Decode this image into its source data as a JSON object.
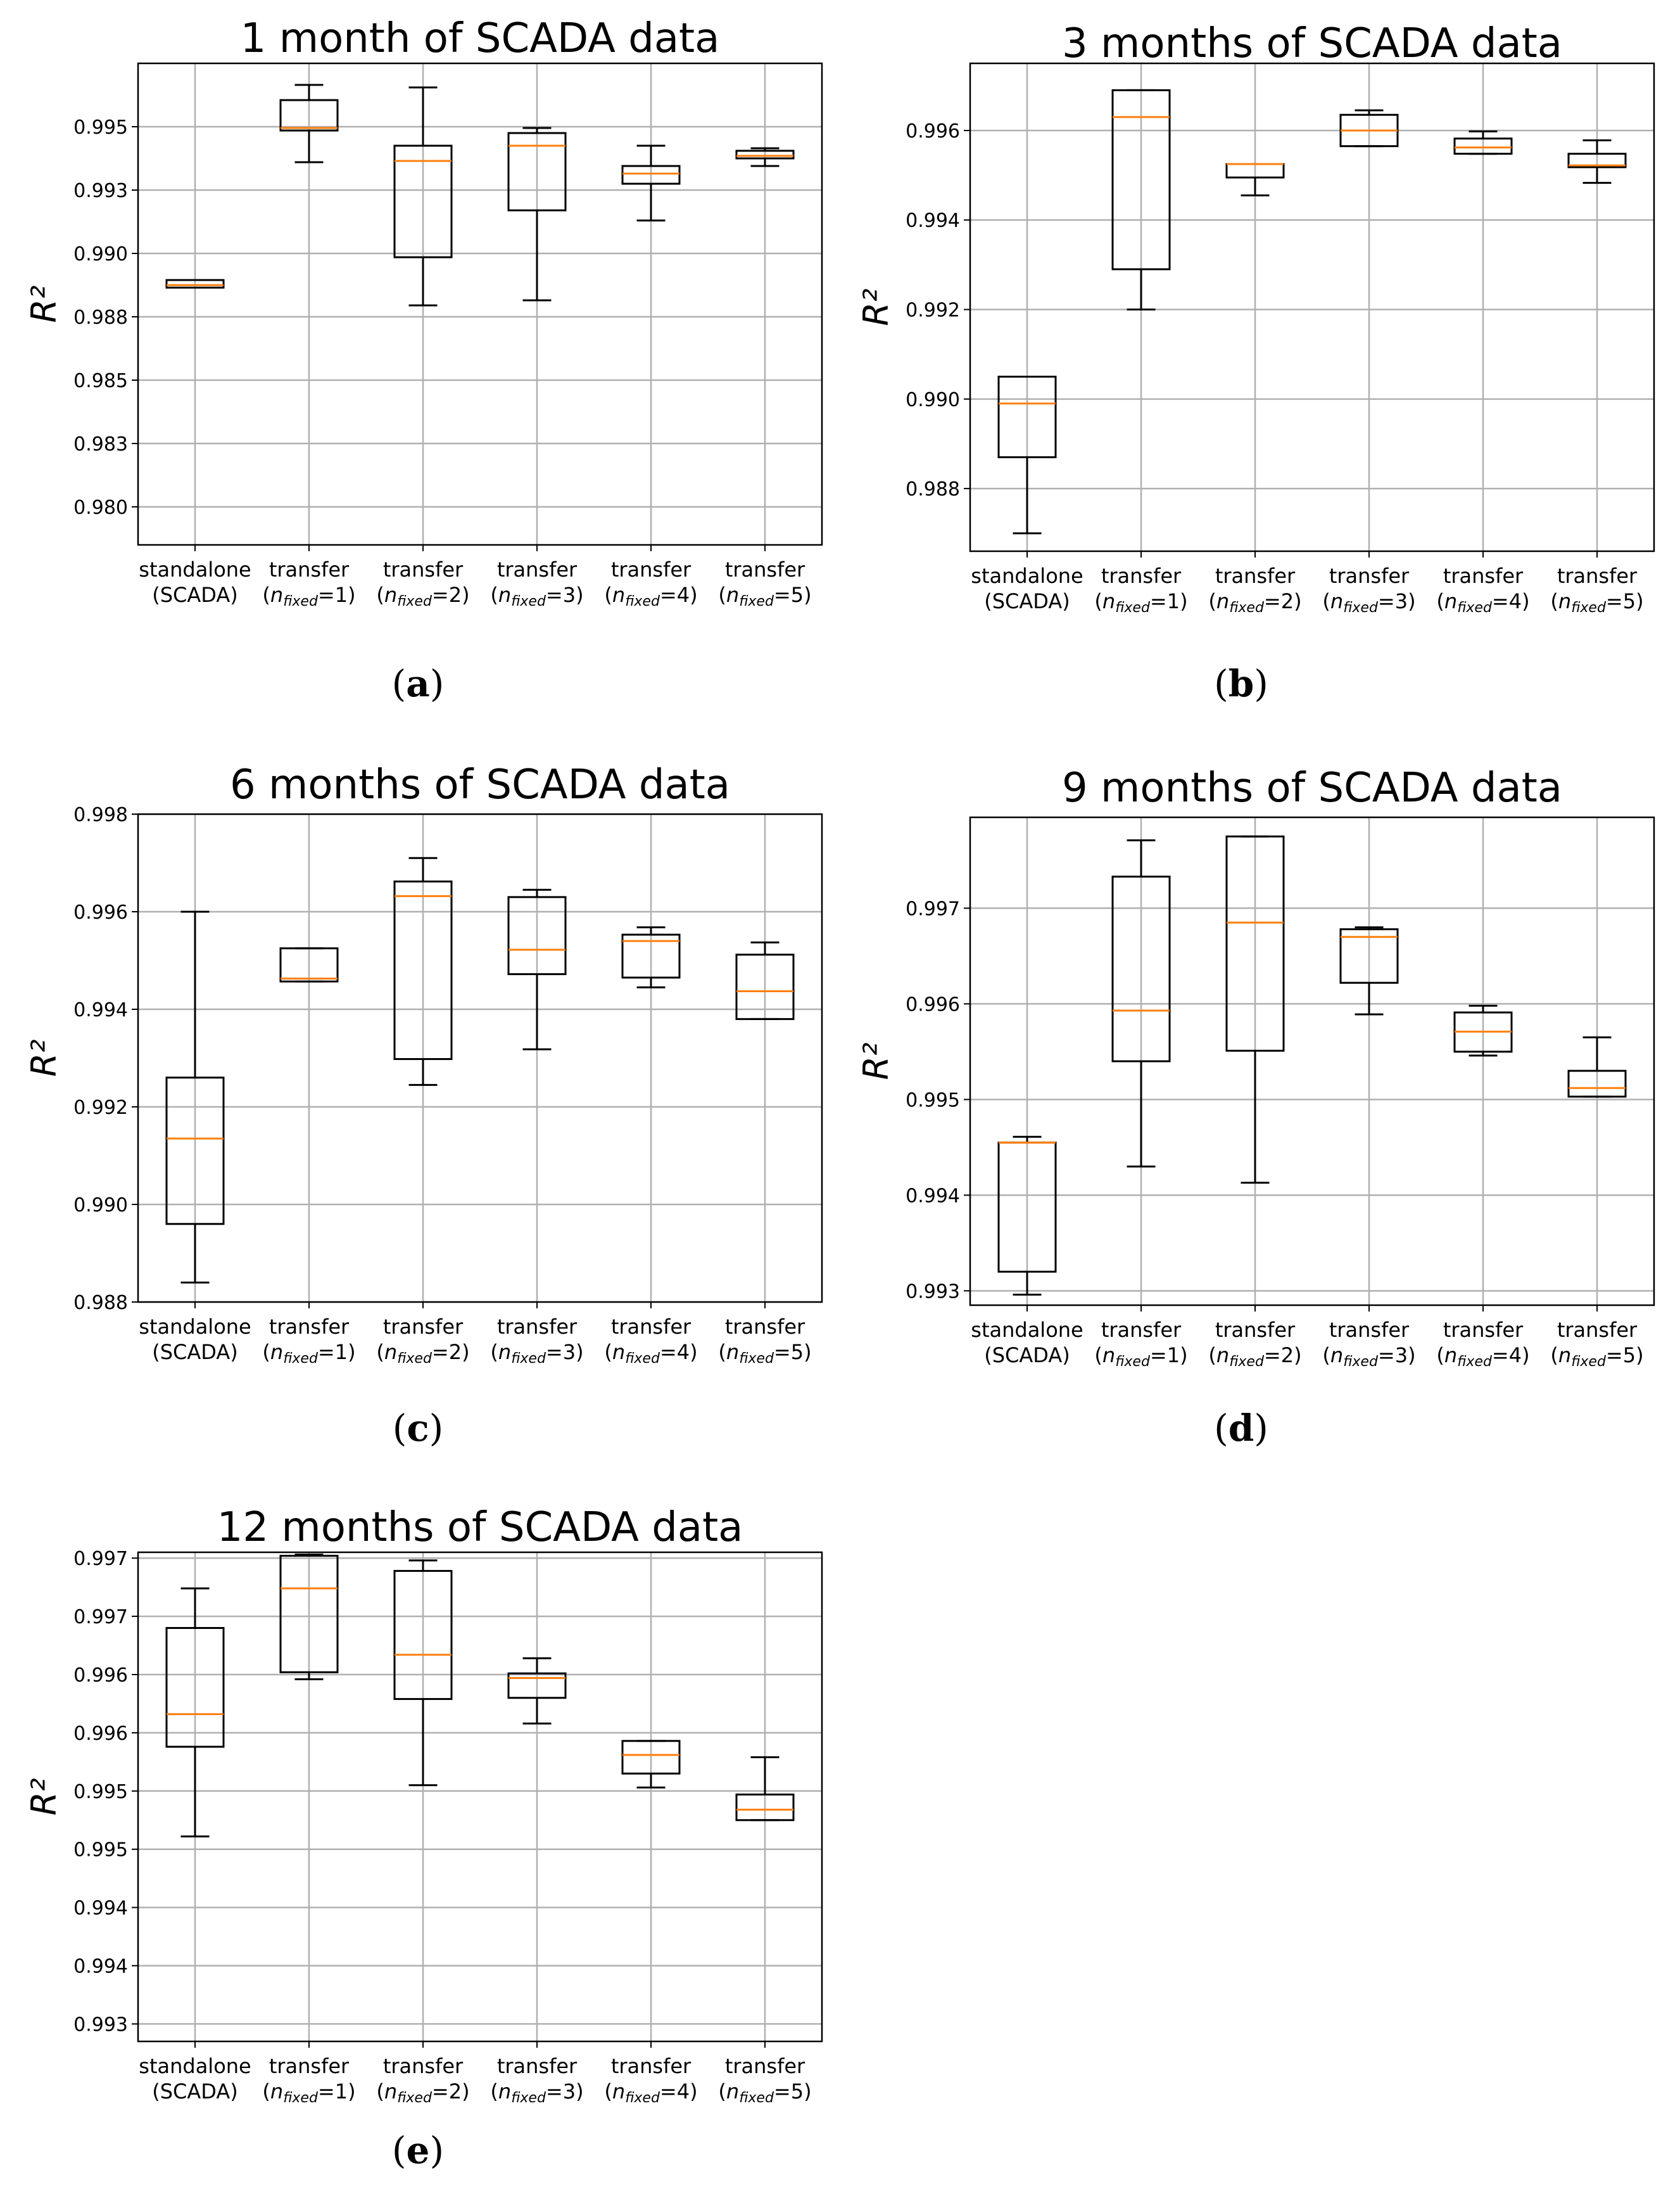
{
  "chart_data": [
    {
      "type": "boxplot",
      "title": "1 month of SCADA data",
      "ylabel": "R²",
      "ylim": [
        0.9785,
        0.9975
      ],
      "yticks": [
        0.98,
        0.9825,
        0.985,
        0.9875,
        0.99,
        0.9925,
        0.995
      ],
      "ytick_labels": [
        "0.980",
        "0.983",
        "0.985",
        "0.988",
        "0.990",
        "0.993",
        "0.995"
      ],
      "categories": [
        {
          "line1": "standalone",
          "line2": "(SCADA)",
          "n": ""
        },
        {
          "line1": "transfer",
          "n": "1"
        },
        {
          "line1": "transfer",
          "n": "2"
        },
        {
          "line1": "transfer",
          "n": "3"
        },
        {
          "line1": "transfer",
          "n": "4"
        },
        {
          "line1": "transfer",
          "n": "5"
        }
      ],
      "boxes": [
        {
          "whislo": 0.98865,
          "q1": 0.98865,
          "med": 0.98875,
          "q3": 0.98895,
          "whishi": 0.98895
        },
        {
          "whislo": 0.9936,
          "q1": 0.99485,
          "med": 0.99495,
          "q3": 0.99605,
          "whishi": 0.99665
        },
        {
          "whislo": 0.98795,
          "q1": 0.98985,
          "med": 0.99365,
          "q3": 0.99425,
          "whishi": 0.99655
        },
        {
          "whislo": 0.98815,
          "q1": 0.9917,
          "med": 0.99425,
          "q3": 0.99475,
          "whishi": 0.99495
        },
        {
          "whislo": 0.9913,
          "q1": 0.99275,
          "med": 0.99315,
          "q3": 0.99345,
          "whishi": 0.99425
        },
        {
          "whislo": 0.99345,
          "q1": 0.99375,
          "med": 0.99385,
          "q3": 0.99405,
          "whishi": 0.99415
        }
      ],
      "caption": "a"
    },
    {
      "type": "boxplot",
      "title": "3 months of SCADA data",
      "ylabel": "R²",
      "ylim": [
        0.9866,
        0.9975
      ],
      "yticks": [
        0.988,
        0.99,
        0.992,
        0.994,
        0.996
      ],
      "ytick_labels": [
        "0.988",
        "0.990",
        "0.992",
        "0.994",
        "0.996"
      ],
      "categories": [
        {
          "line1": "standalone",
          "line2": "(SCADA)",
          "n": ""
        },
        {
          "line1": "transfer",
          "n": "1"
        },
        {
          "line1": "transfer",
          "n": "2"
        },
        {
          "line1": "transfer",
          "n": "3"
        },
        {
          "line1": "transfer",
          "n": "4"
        },
        {
          "line1": "transfer",
          "n": "5"
        }
      ],
      "boxes": [
        {
          "whislo": 0.987,
          "q1": 0.9887,
          "med": 0.9899,
          "q3": 0.9905,
          "whishi": 0.9905
        },
        {
          "whislo": 0.992,
          "q1": 0.9929,
          "med": 0.9963,
          "q3": 0.9969,
          "whishi": 0.9969
        },
        {
          "whislo": 0.99455,
          "q1": 0.99495,
          "med": 0.99525,
          "q3": 0.99525,
          "whishi": 0.99525
        },
        {
          "whislo": 0.99565,
          "q1": 0.99565,
          "med": 0.996,
          "q3": 0.99635,
          "whishi": 0.99645
        },
        {
          "whislo": 0.99548,
          "q1": 0.99548,
          "med": 0.99562,
          "q3": 0.99582,
          "whishi": 0.99598
        },
        {
          "whislo": 0.99483,
          "q1": 0.99518,
          "med": 0.99522,
          "q3": 0.99548,
          "whishi": 0.99578
        }
      ],
      "caption": "b"
    },
    {
      "type": "boxplot",
      "title": "6 months of SCADA data",
      "ylabel": "R²",
      "ylim": [
        0.988,
        0.998
      ],
      "yticks": [
        0.988,
        0.99,
        0.992,
        0.994,
        0.996,
        0.998
      ],
      "ytick_labels": [
        "0.988",
        "0.990",
        "0.992",
        "0.994",
        "0.996",
        "0.998"
      ],
      "categories": [
        {
          "line1": "standalone",
          "line2": "(SCADA)",
          "n": ""
        },
        {
          "line1": "transfer",
          "n": "1"
        },
        {
          "line1": "transfer",
          "n": "2"
        },
        {
          "line1": "transfer",
          "n": "3"
        },
        {
          "line1": "transfer",
          "n": "4"
        },
        {
          "line1": "transfer",
          "n": "5"
        }
      ],
      "boxes": [
        {
          "whislo": 0.9884,
          "q1": 0.9896,
          "med": 0.99135,
          "q3": 0.9926,
          "whishi": 0.996
        },
        {
          "whislo": 0.99457,
          "q1": 0.99457,
          "med": 0.99463,
          "q3": 0.99525,
          "whishi": 0.99525
        },
        {
          "whislo": 0.99245,
          "q1": 0.99298,
          "med": 0.99632,
          "q3": 0.99662,
          "whishi": 0.9971
        },
        {
          "whislo": 0.99318,
          "q1": 0.99472,
          "med": 0.99522,
          "q3": 0.9963,
          "whishi": 0.99645
        },
        {
          "whislo": 0.99445,
          "q1": 0.99465,
          "med": 0.9954,
          "q3": 0.99553,
          "whishi": 0.99568
        },
        {
          "whislo": 0.9938,
          "q1": 0.9938,
          "med": 0.99437,
          "q3": 0.99512,
          "whishi": 0.99537
        }
      ],
      "caption": "c"
    },
    {
      "type": "boxplot",
      "title": "9 months of SCADA data",
      "ylabel": "R²",
      "ylim": [
        0.99285,
        0.99795
      ],
      "yticks": [
        0.993,
        0.994,
        0.995,
        0.996,
        0.997
      ],
      "ytick_labels": [
        "0.993",
        "0.994",
        "0.995",
        "0.996",
        "0.997"
      ],
      "categories": [
        {
          "line1": "standalone",
          "line2": "(SCADA)",
          "n": ""
        },
        {
          "line1": "transfer",
          "n": "1"
        },
        {
          "line1": "transfer",
          "n": "2"
        },
        {
          "line1": "transfer",
          "n": "3"
        },
        {
          "line1": "transfer",
          "n": "4"
        },
        {
          "line1": "transfer",
          "n": "5"
        }
      ],
      "boxes": [
        {
          "whislo": 0.99296,
          "q1": 0.9932,
          "med": 0.99455,
          "q3": 0.99455,
          "whishi": 0.99461
        },
        {
          "whislo": 0.9943,
          "q1": 0.9954,
          "med": 0.99593,
          "q3": 0.99733,
          "whishi": 0.99771
        },
        {
          "whislo": 0.99413,
          "q1": 0.99551,
          "med": 0.99685,
          "q3": 0.99775,
          "whishi": 0.99775
        },
        {
          "whislo": 0.99589,
          "q1": 0.99622,
          "med": 0.9967,
          "q3": 0.99678,
          "whishi": 0.9968
        },
        {
          "whislo": 0.99546,
          "q1": 0.9955,
          "med": 0.99571,
          "q3": 0.99591,
          "whishi": 0.99598
        },
        {
          "whislo": 0.99503,
          "q1": 0.99503,
          "med": 0.99512,
          "q3": 0.9953,
          "whishi": 0.99565
        }
      ],
      "caption": "d"
    },
    {
      "type": "boxplot",
      "title": "12 months of SCADA data",
      "ylabel": "R²",
      "ylim": [
        0.99285,
        0.99705
      ],
      "yticks": [
        0.993,
        0.9935,
        0.994,
        0.9945,
        0.995,
        0.9955,
        0.996,
        0.9965,
        0.997
      ],
      "ytick_labels": [
        "0.993",
        "0.994",
        "0.994",
        "0.995",
        "0.995",
        "0.996",
        "0.996",
        "0.997",
        "0.997"
      ],
      "categories": [
        {
          "line1": "standalone",
          "line2": "(SCADA)",
          "n": ""
        },
        {
          "line1": "transfer",
          "n": "1"
        },
        {
          "line1": "transfer",
          "n": "2"
        },
        {
          "line1": "transfer",
          "n": "3"
        },
        {
          "line1": "transfer",
          "n": "4"
        },
        {
          "line1": "transfer",
          "n": "5"
        }
      ],
      "boxes": [
        {
          "whislo": 0.99461,
          "q1": 0.99538,
          "med": 0.99566,
          "q3": 0.9964,
          "whishi": 0.99674
        },
        {
          "whislo": 0.99596,
          "q1": 0.99602,
          "med": 0.99674,
          "q3": 0.99702,
          "whishi": 0.99703
        },
        {
          "whislo": 0.99505,
          "q1": 0.99579,
          "med": 0.99617,
          "q3": 0.99689,
          "whishi": 0.99698
        },
        {
          "whislo": 0.99558,
          "q1": 0.9958,
          "med": 0.99597,
          "q3": 0.99601,
          "whishi": 0.99614
        },
        {
          "whislo": 0.99503,
          "q1": 0.99515,
          "med": 0.99531,
          "q3": 0.99543,
          "whishi": 0.99543
        },
        {
          "whislo": 0.99475,
          "q1": 0.99475,
          "med": 0.99484,
          "q3": 0.99497,
          "whishi": 0.99529
        }
      ],
      "caption": "e"
    }
  ],
  "colors": {
    "median": "#ff7f0e",
    "box": "#000000",
    "grid": "#b0b0b0"
  },
  "ui": {
    "nfixed_subscript": "fixed",
    "n_symbol": "n"
  }
}
